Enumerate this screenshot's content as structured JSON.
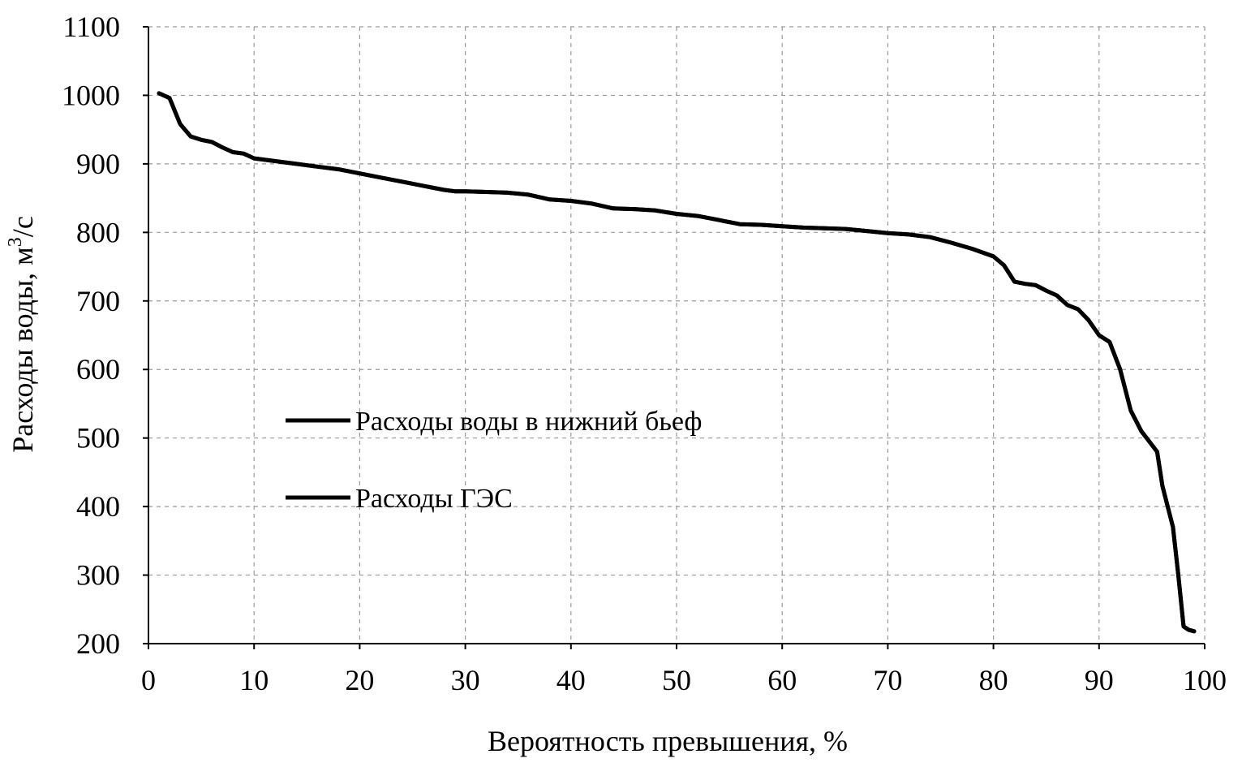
{
  "chart_data": {
    "type": "line",
    "title": "",
    "xlabel": "Вероятность превышения,  %",
    "ylabel": "Расходы воды, м",
    "ylabel_sup": "3",
    "ylabel_tail": "/с",
    "xlim": [
      0,
      100
    ],
    "ylim": [
      200,
      1100
    ],
    "xticks": [
      0,
      10,
      20,
      30,
      40,
      50,
      60,
      70,
      80,
      90,
      100
    ],
    "yticks": [
      200,
      300,
      400,
      500,
      600,
      700,
      800,
      900,
      1000,
      1100
    ],
    "grid": true,
    "legend": {
      "placement": "center-left",
      "entries": [
        "Расходы воды в нижний бьеф",
        "Расходы ГЭС"
      ]
    },
    "series": [
      {
        "name": "Расходы воды в нижний бьеф",
        "color": "#000000",
        "x": [
          1,
          2,
          3,
          4,
          5,
          6,
          7,
          8,
          9,
          10,
          12,
          14,
          16,
          18,
          20,
          22,
          24,
          26,
          28,
          29,
          30,
          32,
          34,
          36,
          38,
          40,
          42,
          44,
          46,
          48,
          50,
          52,
          54,
          56,
          58,
          60,
          62,
          64,
          66,
          68,
          70,
          72,
          74,
          76,
          78,
          80,
          81,
          82,
          83,
          84,
          85,
          86,
          87,
          88,
          89,
          90,
          91,
          92,
          93,
          94,
          95,
          95.5,
          96,
          97,
          97.5,
          98,
          98.5,
          99
        ],
        "y": [
          1003,
          996,
          958,
          940,
          935,
          932,
          924,
          917,
          915,
          908,
          904,
          900,
          896,
          892,
          886,
          880,
          874,
          868,
          862,
          860,
          860,
          859,
          858,
          855,
          848,
          846,
          842,
          835,
          834,
          832,
          827,
          824,
          818,
          812,
          811,
          809,
          807,
          806,
          805,
          802,
          799,
          797,
          793,
          785,
          776,
          765,
          752,
          728,
          725,
          723,
          715,
          708,
          694,
          688,
          672,
          650,
          640,
          600,
          540,
          510,
          490,
          480,
          430,
          370,
          300,
          225,
          220,
          218
        ]
      },
      {
        "name": "Расходы ГЭС",
        "color": "#000000",
        "x": [
          1,
          2,
          3,
          4,
          5,
          6,
          7,
          8,
          9,
          10,
          12,
          14,
          16,
          18,
          20,
          22,
          24,
          26,
          28,
          29,
          30,
          32,
          34,
          36,
          38,
          40,
          42,
          44,
          46,
          48,
          50,
          52,
          54,
          56,
          58,
          60,
          62,
          64,
          66,
          68,
          70,
          72,
          74,
          76,
          78,
          80,
          81,
          82,
          83,
          84,
          85,
          86,
          87,
          88,
          89,
          90,
          91,
          92,
          93,
          94,
          95,
          95.5,
          96,
          97,
          97.5,
          98,
          98.5,
          99
        ],
        "y": [
          1003,
          996,
          958,
          940,
          935,
          932,
          924,
          917,
          915,
          908,
          904,
          900,
          896,
          892,
          886,
          880,
          874,
          868,
          862,
          860,
          860,
          859,
          858,
          855,
          848,
          846,
          842,
          835,
          834,
          832,
          827,
          824,
          818,
          812,
          811,
          809,
          807,
          806,
          805,
          802,
          799,
          797,
          793,
          785,
          776,
          765,
          752,
          728,
          725,
          723,
          715,
          708,
          694,
          688,
          672,
          650,
          640,
          600,
          540,
          510,
          490,
          480,
          430,
          370,
          300,
          225,
          220,
          218
        ]
      }
    ]
  }
}
